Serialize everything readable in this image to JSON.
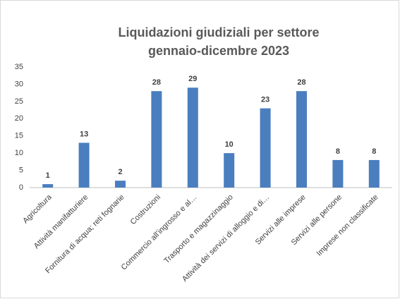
{
  "chart_data": {
    "type": "bar",
    "title": "Liquidazioni giudiziali per settore",
    "subtitle": "gennaio-dicembre 2023",
    "categories": [
      "Agricoltura",
      "Attività manifatturiere",
      "Fornitura di acqua; reti fognarie",
      "Costruzioni",
      "Commercio all’ingrosso e al…",
      "Trasporto e magazzinaggio",
      "Attività dei servizi di alloggio e di…",
      "Servizi alle imprese",
      "Servizi alle persone",
      "Imprese non classificate"
    ],
    "values": [
      1,
      13,
      2,
      28,
      29,
      10,
      23,
      28,
      8,
      8
    ],
    "color": "#4a7ebf",
    "ylim": [
      0,
      35
    ],
    "yticks": [
      0,
      5,
      10,
      15,
      20,
      25,
      30,
      35
    ],
    "grid": false
  }
}
